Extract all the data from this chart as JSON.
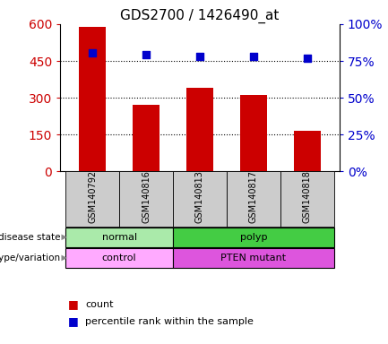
{
  "title": "GDS2700 / 1426490_at",
  "samples": [
    "GSM140792",
    "GSM140816",
    "GSM140813",
    "GSM140817",
    "GSM140818"
  ],
  "counts": [
    590,
    270,
    340,
    310,
    165
  ],
  "percentiles": [
    80.5,
    79.0,
    78.0,
    78.0,
    77.0
  ],
  "left_ylim": [
    0,
    600
  ],
  "left_yticks": [
    0,
    150,
    300,
    450,
    600
  ],
  "right_ylim": [
    0,
    100
  ],
  "right_yticks": [
    0,
    25,
    50,
    75,
    100
  ],
  "bar_color": "#cc0000",
  "dot_color": "#0000cc",
  "bar_width": 0.5,
  "disease_state_groups": [
    {
      "label": "normal",
      "start": 0,
      "end": 1,
      "color": "#aaeaaa"
    },
    {
      "label": "polyp",
      "start": 2,
      "end": 4,
      "color": "#44cc44"
    }
  ],
  "genotype_groups": [
    {
      "label": "control",
      "start": 0,
      "end": 1,
      "color": "#ffaaff"
    },
    {
      "label": "PTEN mutant",
      "start": 2,
      "end": 4,
      "color": "#dd55dd"
    }
  ],
  "left_label_color": "#cc0000",
  "right_label_color": "#0000cc",
  "bg_color": "#ffffff",
  "xticklabel_bg": "#cccccc",
  "legend_count_color": "#cc0000",
  "legend_pct_color": "#0000cc"
}
